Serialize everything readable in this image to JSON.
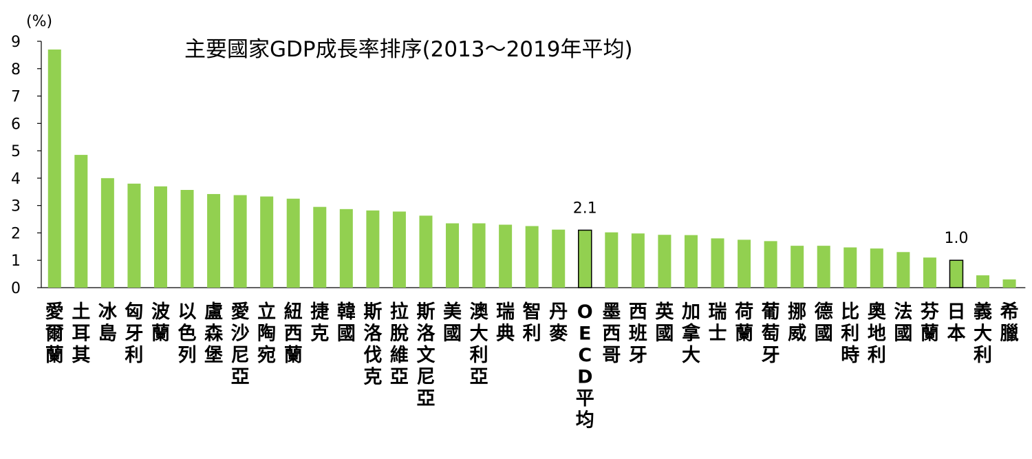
{
  "chart_data": {
    "type": "bar",
    "title": "主要國家GDP成長率排序(2013～2019年平均)",
    "ylabel": "",
    "unit_label": "(%)",
    "xlabel": "",
    "ylim": [
      0,
      9
    ],
    "yticks": [
      0,
      1,
      2,
      3,
      4,
      5,
      6,
      7,
      8,
      9
    ],
    "grid": false,
    "legend": "none",
    "colors": {
      "bar": "#92d050",
      "highlight": "#92d050",
      "highlight_edge": "#000000"
    },
    "categories": [
      "愛爾蘭",
      "土耳其",
      "冰島",
      "匈牙利",
      "波蘭",
      "以色列",
      "盧森堡",
      "愛沙尼亞",
      "立陶宛",
      "紐西蘭",
      "捷克",
      "韓國",
      "斯洛伐克",
      "拉脫維亞",
      "斯洛文尼亞",
      "美國",
      "澳大利亞",
      "瑞典",
      "智利",
      "丹麥",
      "OECD平均",
      "墨西哥",
      "西班牙",
      "英國",
      "加拿大",
      "瑞士",
      "荷蘭",
      "葡萄牙",
      "挪威",
      "德國",
      "比利時",
      "奧地利",
      "法國",
      "芬蘭",
      "日本",
      "義大利",
      "希臘"
    ],
    "values": [
      8.7,
      4.85,
      4.0,
      3.8,
      3.7,
      3.57,
      3.42,
      3.38,
      3.33,
      3.25,
      2.95,
      2.87,
      2.82,
      2.78,
      2.63,
      2.35,
      2.35,
      2.3,
      2.25,
      2.12,
      2.1,
      2.02,
      1.98,
      1.93,
      1.92,
      1.8,
      1.75,
      1.7,
      1.53,
      1.53,
      1.47,
      1.43,
      1.3,
      1.1,
      1.0,
      0.45,
      0.3
    ],
    "highlighted": [
      "OECD平均",
      "日本"
    ],
    "data_labels": [
      {
        "category": "OECD平均",
        "text": "2.1"
      },
      {
        "category": "日本",
        "text": "1.0"
      }
    ]
  }
}
